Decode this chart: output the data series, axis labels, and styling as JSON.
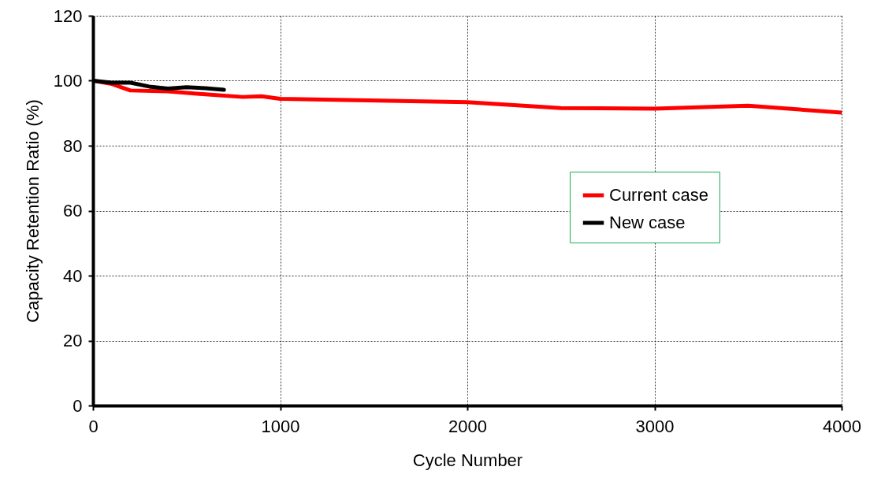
{
  "chart_data": {
    "type": "line",
    "xlabel": "Cycle Number",
    "ylabel": "Capacity Retention Ratio (%)",
    "xlim": [
      0,
      4000
    ],
    "xticks": [
      0,
      1000,
      2000,
      3000,
      4000
    ],
    "ylim": [
      0,
      120
    ],
    "yticks": [
      0,
      20,
      40,
      60,
      80,
      100,
      120
    ],
    "grid": true,
    "legend": "right",
    "line_style": "solid",
    "marker": "none",
    "series": [
      {
        "name": "Current case",
        "color": "#ff0000",
        "x": [
          0,
          100,
          200,
          400,
          600,
          800,
          900,
          1000,
          2000,
          2500,
          3000,
          3500,
          4000
        ],
        "values": [
          100,
          99.0,
          97.0,
          96.7,
          95.8,
          95.0,
          95.2,
          94.4,
          93.4,
          91.6,
          91.4,
          92.3,
          90.2
        ]
      },
      {
        "name": "New case",
        "color": "#000000",
        "x": [
          0,
          100,
          200,
          300,
          400,
          500,
          600,
          700
        ],
        "values": [
          100,
          99.4,
          99.4,
          98.2,
          97.6,
          98.0,
          97.7,
          97.2
        ]
      }
    ]
  }
}
